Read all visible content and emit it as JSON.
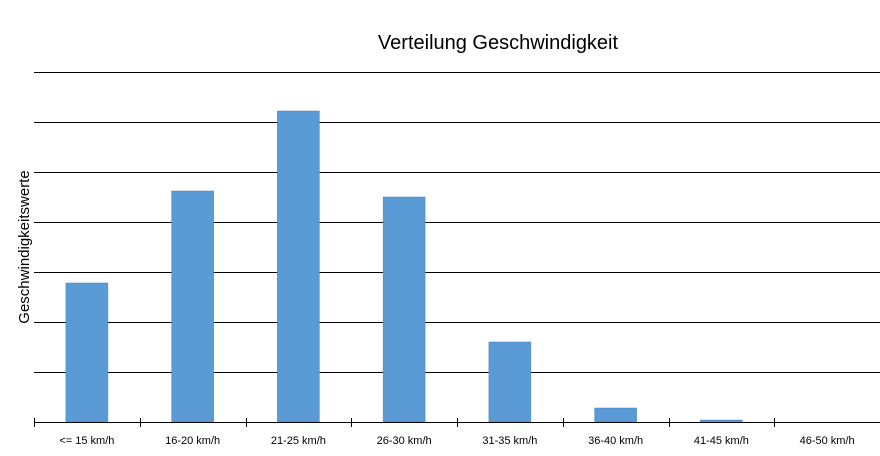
{
  "chart_data": {
    "type": "bar",
    "title": "Verteilung Geschwindigkeit",
    "xlabel": "",
    "ylabel": "Geschwindigkeitswerte",
    "categories": [
      "<= 15 km/h",
      "16-20 km/h",
      "21-25 km/h",
      "26-30 km/h",
      "31-35 km/h",
      "36-40 km/h",
      "41-45 km/h",
      "46-50 km/h"
    ],
    "values": [
      139,
      231,
      311,
      225,
      80,
      14,
      2,
      0
    ],
    "ylim": [
      0,
      350
    ],
    "grid": true,
    "bar_color": "#5b9bd5",
    "grid_color": "#000000"
  }
}
